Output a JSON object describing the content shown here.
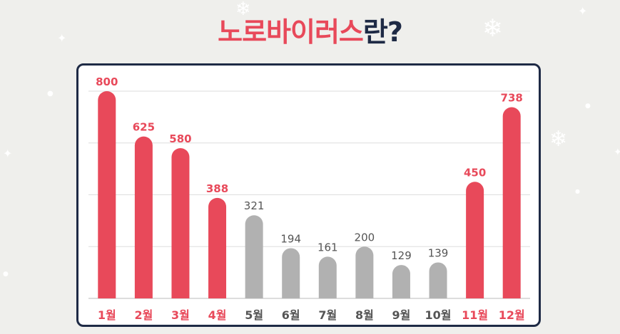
{
  "title": {
    "part1": "노로바이러스",
    "part2": "란?"
  },
  "colors": {
    "highlight": "#e8495a",
    "muted": "#b1b1b1",
    "dark": "#1e2a45",
    "muted_text": "#555555",
    "grid": "#dddddd"
  },
  "chart_data": {
    "type": "bar",
    "categories": [
      "1월",
      "2월",
      "3월",
      "4월",
      "5월",
      "6월",
      "7월",
      "8월",
      "9월",
      "10월",
      "11월",
      "12월"
    ],
    "values": [
      800,
      625,
      580,
      388,
      321,
      194,
      161,
      200,
      129,
      139,
      450,
      738
    ],
    "highlighted": [
      true,
      true,
      true,
      true,
      false,
      false,
      false,
      false,
      false,
      false,
      true,
      true
    ],
    "ylim": [
      0,
      800
    ],
    "grid": true,
    "data_labels": true
  }
}
